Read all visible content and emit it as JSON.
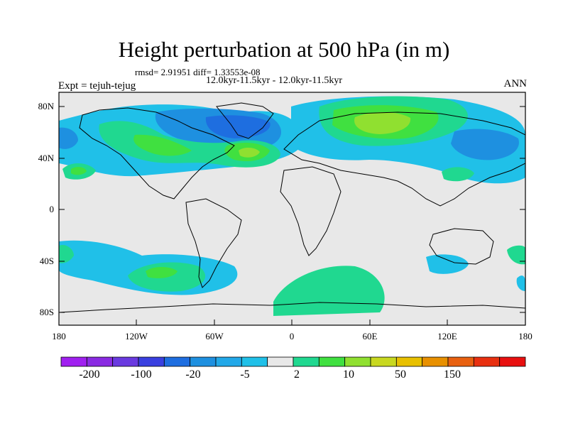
{
  "title": "Height perturbation at 500 hPa (in m)",
  "stats": "rmsd= 2.91951 diff= 1.33553e-08",
  "subtitle": "12.0kyr-11.5kyr - 12.0kyr-11.5kyr",
  "experiment": "Expt = tejuh-tejug",
  "season": "ANN",
  "map": {
    "lat_ticks": [
      "80N",
      "40N",
      "0",
      "40S",
      "80S"
    ],
    "lon_ticks": [
      "180",
      "120W",
      "60W",
      "0",
      "60E",
      "120E",
      "180"
    ]
  },
  "colorbar": {
    "colors": [
      "#a020f0",
      "#8a2be2",
      "#6a3ae0",
      "#3a40e0",
      "#1e6ee0",
      "#1e90e0",
      "#22a8e8",
      "#20c0e8",
      "#e8e8e8",
      "#20d890",
      "#40e040",
      "#90e030",
      "#c8d820",
      "#e8c000",
      "#e89000",
      "#e86010",
      "#e83010",
      "#e81010"
    ],
    "labels": [
      "-200",
      "-100",
      "-20",
      "-5",
      "2",
      "10",
      "50",
      "150"
    ]
  }
}
